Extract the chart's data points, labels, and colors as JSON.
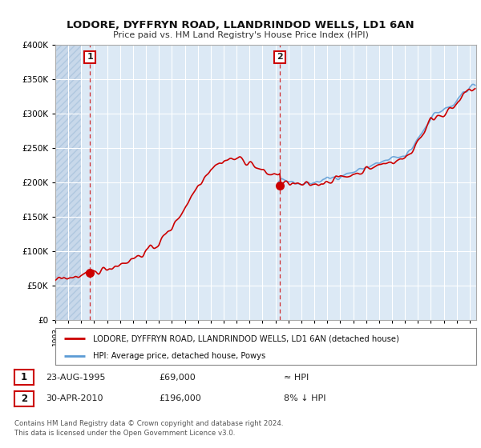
{
  "title": "LODORE, DYFFRYN ROAD, LLANDRINDOD WELLS, LD1 6AN",
  "subtitle": "Price paid vs. HM Land Registry's House Price Index (HPI)",
  "bg_color": "#ffffff",
  "plot_bg_color": "#dce9f5",
  "hatch_bg_color": "#c8d8e8",
  "grid_color": "#ffffff",
  "sale1_price": 69000,
  "sale2_price": 196000,
  "hpi_line_color": "#5b9bd5",
  "price_line_color": "#cc0000",
  "annotation1_text": "1",
  "annotation2_text": "2",
  "legend_label1": "LODORE, DYFFRYN ROAD, LLANDRINDOD WELLS, LD1 6AN (detached house)",
  "legend_label2": "HPI: Average price, detached house, Powys",
  "note1_num": "1",
  "note1_date": "23-AUG-1995",
  "note1_price": "£69,000",
  "note1_hpi": "≈ HPI",
  "note2_num": "2",
  "note2_date": "30-APR-2010",
  "note2_price": "£196,000",
  "note2_hpi": "8% ↓ HPI",
  "footer": "Contains HM Land Registry data © Crown copyright and database right 2024.\nThis data is licensed under the Open Government Licence v3.0.",
  "xmin": 1993.0,
  "xmax": 2025.5,
  "ymin": 0,
  "ymax": 400000
}
